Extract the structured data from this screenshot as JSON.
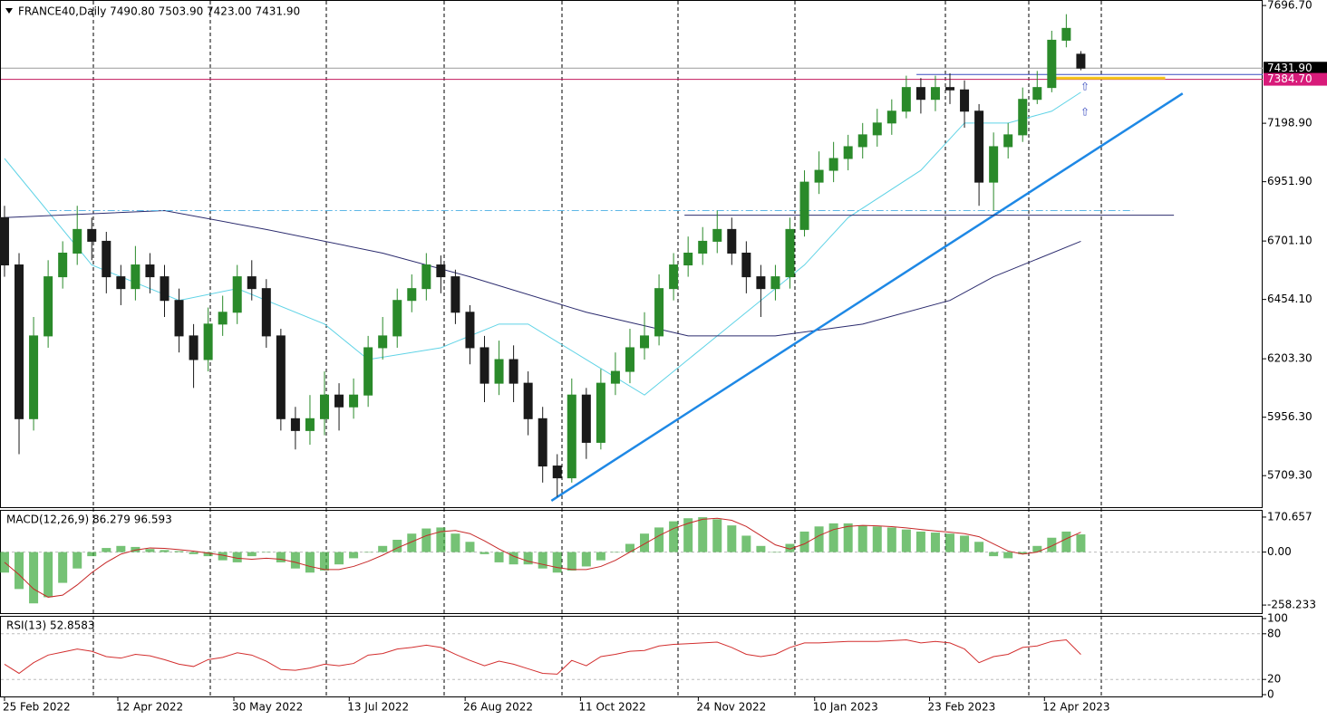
{
  "chart_data": {
    "type": "candlestick",
    "title": "FRANCE40,Daily  7490.80 7503.90 7423.00 7431.90",
    "up_color": "#2a8a2a",
    "down_color": "#1a1a1a",
    "ylim": [
      5576,
      7720
    ],
    "xlim": [
      -0.31,
      86.5
    ],
    "yticks": [
      {
        "value": 7696.7,
        "label": "7696.70"
      },
      {
        "value": 7198.9,
        "label": "7198.90"
      },
      {
        "value": 6951.9,
        "label": "6951.90"
      },
      {
        "value": 6701.1,
        "label": "6701.10"
      },
      {
        "value": 6454.1,
        "label": "6454.10"
      },
      {
        "value": 6203.3,
        "label": "6203.30"
      },
      {
        "value": 5956.3,
        "label": "5956.30"
      },
      {
        "value": 5709.3,
        "label": "5709.30"
      }
    ],
    "xticks": [
      {
        "value": 0,
        "label": "25 Feb 2022"
      },
      {
        "value": 7.79,
        "label": "12 Apr 2022"
      },
      {
        "value": 15.77,
        "label": "30 May 2022"
      },
      {
        "value": 23.7,
        "label": "13 Jul 2022"
      },
      {
        "value": 31.67,
        "label": "26 Aug 2022"
      },
      {
        "value": 39.6,
        "label": "11 Oct 2022"
      },
      {
        "value": 47.7,
        "label": "24 Nov 2022"
      },
      {
        "value": 55.7,
        "label": "10 Jan 2023"
      },
      {
        "value": 63.6,
        "label": "23 Feb 2023"
      },
      {
        "value": 71.5,
        "label": "12 Apr 2023"
      }
    ],
    "open": [
      6800,
      6600,
      5950,
      6300,
      6550,
      6650,
      6750,
      6700,
      6550,
      6500,
      6600,
      6550,
      6450,
      6300,
      6200,
      6350,
      6400,
      6550,
      6500,
      6300,
      5950,
      5900,
      5950,
      6050,
      6000,
      6050,
      6250,
      6300,
      6450,
      6500,
      6600,
      6550,
      6400,
      6250,
      6100,
      6200,
      6100,
      5950,
      5750,
      5700,
      6050,
      5850,
      6100,
      6150,
      6250,
      6300,
      6500,
      6600,
      6650,
      6700,
      6750,
      6650,
      6550,
      6500,
      6550,
      6750,
      6950,
      7000,
      7050,
      7100,
      7150,
      7200,
      7250,
      7350,
      7300,
      7350,
      7340,
      7250,
      6950,
      7100,
      7150,
      7300,
      7350,
      7550,
      7490.8
    ],
    "high": [
      6850,
      6650,
      6380,
      6620,
      6700,
      6850,
      6800,
      6740,
      6600,
      6680,
      6650,
      6600,
      6500,
      6350,
      6420,
      6470,
      6600,
      6620,
      6540,
      6330,
      6000,
      6050,
      6150,
      6100,
      6120,
      6300,
      6380,
      6500,
      6560,
      6650,
      6640,
      6580,
      6430,
      6300,
      6280,
      6260,
      6150,
      6000,
      5800,
      6120,
      6080,
      6160,
      6230,
      6330,
      6400,
      6560,
      6650,
      6720,
      6760,
      6830,
      6800,
      6700,
      6600,
      6600,
      6800,
      7000,
      7080,
      7120,
      7150,
      7200,
      7260,
      7300,
      7400,
      7390,
      7400,
      7410,
      7380,
      7280,
      7160,
      7200,
      7350,
      7420,
      7590,
      7660,
      7503.9
    ],
    "low": [
      6550,
      5800,
      5900,
      6250,
      6500,
      6600,
      6620,
      6480,
      6430,
      6450,
      6480,
      6380,
      6230,
      6080,
      6150,
      6300,
      6350,
      6450,
      6250,
      5900,
      5820,
      5840,
      5880,
      5900,
      5950,
      6000,
      6200,
      6250,
      6400,
      6450,
      6480,
      6350,
      6180,
      6020,
      6050,
      6020,
      5880,
      5680,
      5620,
      5680,
      5780,
      5820,
      6050,
      6100,
      6200,
      6260,
      6450,
      6550,
      6600,
      6650,
      6600,
      6480,
      6380,
      6450,
      6500,
      6720,
      6900,
      6950,
      7000,
      7050,
      7100,
      7150,
      7220,
      7240,
      7250,
      7280,
      7180,
      6850,
      6830,
      7050,
      7120,
      7280,
      7330,
      7520,
      7423
    ],
    "close": [
      6600,
      5950,
      6300,
      6550,
      6650,
      6750,
      6700,
      6550,
      6500,
      6600,
      6550,
      6450,
      6300,
      6200,
      6350,
      6400,
      6550,
      6500,
      6300,
      5950,
      5900,
      5950,
      6050,
      6000,
      6050,
      6250,
      6300,
      6450,
      6500,
      6600,
      6550,
      6400,
      6250,
      6100,
      6200,
      6100,
      5950,
      5750,
      5700,
      6050,
      5850,
      6100,
      6150,
      6250,
      6300,
      6500,
      6600,
      6650,
      6700,
      6750,
      6650,
      6550,
      6500,
      6550,
      6750,
      6950,
      7000,
      7050,
      7100,
      7150,
      7200,
      7250,
      7350,
      7300,
      7350,
      7340,
      7250,
      6950,
      7100,
      7150,
      7300,
      7350,
      7550,
      7600,
      7431.9
    ],
    "series": [
      {
        "color": "#5fd3e6",
        "x": [
          0,
          6,
          12,
          16,
          22,
          25,
          30,
          34,
          36,
          40,
          44,
          47,
          52,
          55,
          58,
          63,
          66,
          69,
          72,
          74
        ],
        "values": [
          7050,
          6600,
          6450,
          6500,
          6350,
          6200,
          6250,
          6350,
          6350,
          6200,
          6050,
          6200,
          6450,
          6600,
          6800,
          7000,
          7200,
          7200,
          7250,
          7330
        ]
      },
      {
        "color": "#2b2b6e",
        "x": [
          0,
          11,
          18,
          26,
          32,
          40,
          47,
          53,
          59,
          65,
          68,
          74
        ],
        "values": [
          6800,
          6830,
          6750,
          6650,
          6550,
          6400,
          6300,
          6300,
          6350,
          6450,
          6550,
          6700
        ]
      }
    ],
    "lines": [
      {
        "color": "#1e88e5",
        "width": 2.5,
        "dash": "none",
        "x": [
          37.6,
          81
        ],
        "values": [
          5603,
          7325
        ]
      },
      {
        "color": "#5fb8e6",
        "width": 1,
        "dash": "8 3 2 3",
        "x": [
          3.1,
          77.6
        ],
        "values": [
          6830,
          6830
        ]
      },
      {
        "color": "#2b2b6e",
        "width": 1,
        "dash": "none",
        "x": [
          46.75,
          80.4
        ],
        "values": [
          6810,
          6810
        ]
      },
      {
        "color": "#3a4cc0",
        "width": 1,
        "dash": "none",
        "x": [
          62.7,
          86.5
        ],
        "values": [
          7405,
          7405
        ]
      },
      {
        "color": "#f5c518",
        "width": 3,
        "dash": "none",
        "x": [
          71.7,
          79.8
        ],
        "values": [
          7390,
          7390
        ]
      }
    ],
    "price_lines": [
      {
        "value": 7431.9,
        "label": "7431.90",
        "color": "#9a9a9a",
        "box": "#000000"
      },
      {
        "value": 7384.7,
        "label": "7384.70",
        "color": "#c2185b",
        "box": "#d81b7a"
      }
    ],
    "macd": {
      "title": "MACD(12,26,9) 86.279 96.593",
      "ylim": [
        -302,
        205.7
      ],
      "yticks": [
        170.657,
        {
          "value": 0,
          "label": "0.00"
        },
        -258.233
      ],
      "hist_color": "#3aa83a",
      "signal_color": "#c62828",
      "hist": [
        -100,
        -180,
        -250,
        -220,
        -150,
        -80,
        -20,
        20,
        30,
        25,
        15,
        10,
        5,
        -10,
        -20,
        -40,
        -50,
        -20,
        0,
        -50,
        -80,
        -100,
        -90,
        -60,
        -30,
        0,
        30,
        60,
        90,
        115,
        120,
        90,
        50,
        -10,
        -50,
        -60,
        -60,
        -80,
        -100,
        -90,
        -70,
        -40,
        0,
        40,
        90,
        120,
        150,
        165,
        170,
        160,
        130,
        80,
        30,
        0,
        40,
        100,
        125,
        140,
        140,
        130,
        125,
        120,
        110,
        100,
        95,
        90,
        80,
        50,
        -20,
        -30,
        -10,
        30,
        70,
        100,
        86.279
      ],
      "signal": [
        -50,
        -110,
        -180,
        -220,
        -210,
        -160,
        -100,
        -50,
        -10,
        10,
        20,
        18,
        12,
        5,
        -5,
        -15,
        -30,
        -35,
        -30,
        -35,
        -50,
        -70,
        -85,
        -85,
        -70,
        -45,
        -15,
        20,
        50,
        80,
        100,
        105,
        90,
        55,
        15,
        -20,
        -45,
        -60,
        -75,
        -85,
        -85,
        -70,
        -40,
        0,
        40,
        80,
        115,
        140,
        160,
        165,
        155,
        125,
        80,
        35,
        15,
        40,
        80,
        110,
        125,
        130,
        128,
        124,
        118,
        110,
        103,
        97,
        90,
        75,
        40,
        5,
        -10,
        0,
        30,
        65,
        96.593
      ]
    },
    "rsi": {
      "title": "RSI(13) 52.8583",
      "ylim": [
        0,
        100
      ],
      "yticks": [
        100,
        80,
        20,
        0
      ],
      "levels": [
        80,
        20
      ],
      "color": "#d32f2f",
      "values": [
        40,
        28,
        42,
        52,
        56,
        60,
        57,
        50,
        48,
        53,
        51,
        46,
        40,
        37,
        46,
        49,
        55,
        52,
        44,
        33,
        32,
        35,
        40,
        38,
        41,
        52,
        54,
        60,
        62,
        65,
        62,
        53,
        45,
        38,
        44,
        40,
        34,
        28,
        27,
        45,
        38,
        50,
        53,
        57,
        58,
        64,
        66,
        67,
        68,
        69,
        62,
        53,
        50,
        53,
        62,
        68,
        68,
        69,
        70,
        70,
        70,
        71,
        72,
        68,
        70,
        68,
        60,
        42,
        50,
        53,
        62,
        64,
        70,
        72,
        52.8583
      ]
    }
  }
}
